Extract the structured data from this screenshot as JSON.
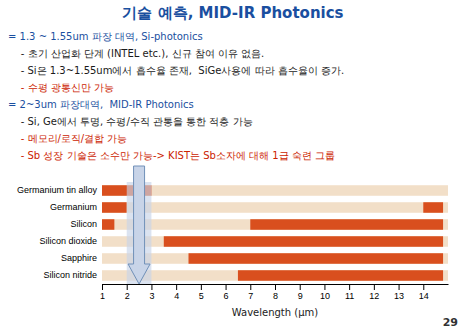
{
  "chart_data": {
    "type": "range_bar",
    "orientation": "horizontal",
    "title": "기술 예측, MID-IR Photonics",
    "title_color": "#1a4fa0",
    "annotations": [
      {
        "text": "= 1.3 ~ 1.55um 파장 대역, Si-photonics",
        "color": "#1a4fa0"
      },
      {
        "text": "    - 초기 산업화 단계 (INTEL etc.), 신규 참여 이유 없음.",
        "color": "#1a1a1a"
      },
      {
        "text": "    - Si은 1.3~1.55um에서 흡수율 존재,  SiGe사용에 따라 흡수율이 증가.",
        "color": "#1a1a1a"
      },
      {
        "text": "    - 수평 광통신만 가능",
        "color": "#cc2200"
      },
      {
        "text": "= 2~3um 파장대역,  MID-IR Photonics",
        "color": "#1a4fa0"
      },
      {
        "text": "    - Si, Ge에서 투명, 수평/수직 관통을 통한 적층 가능",
        "color": "#1a1a1a"
      },
      {
        "text": "    - 메모리/로직/결합 가능",
        "color": "#cc2200"
      },
      {
        "text": "    - Sb 성장 기술은 소수만 가능-> KIST는 Sb소자에 대해 1급 숙련 그룹",
        "color": "#cc2200"
      }
    ],
    "footer": "29",
    "categories": [
      "Germanium tin alloy",
      "Germanium",
      "Silicon",
      "Silicon dioxide",
      "Sapphire",
      "Silicon nitride"
    ],
    "values": [
      [
        [
          1.0,
          3.0
        ]
      ],
      [
        [
          1.0,
          2.0
        ],
        [
          14.0,
          14.8
        ]
      ],
      [
        [
          1.0,
          1.5
        ],
        [
          7.0,
          14.8
        ]
      ],
      [
        [
          3.5,
          14.8
        ]
      ],
      [
        [
          4.5,
          14.8
        ]
      ],
      [
        [
          6.5,
          14.8
        ]
      ]
    ],
    "color": "#d94f1e",
    "track_color": "#f2dfc8",
    "span": {
      "x": [
        2.0,
        3.0
      ],
      "color": "#c8d4e8"
    },
    "arrow": {
      "x": 2.5,
      "color": "#7090b8"
    },
    "xlabel": "Wavelength (μm)",
    "xlim": [
      1,
      15
    ],
    "xticks": [
      1,
      2,
      3,
      4,
      5,
      6,
      7,
      8,
      9,
      10,
      11,
      12,
      13,
      14
    ],
    "grid": false
  }
}
